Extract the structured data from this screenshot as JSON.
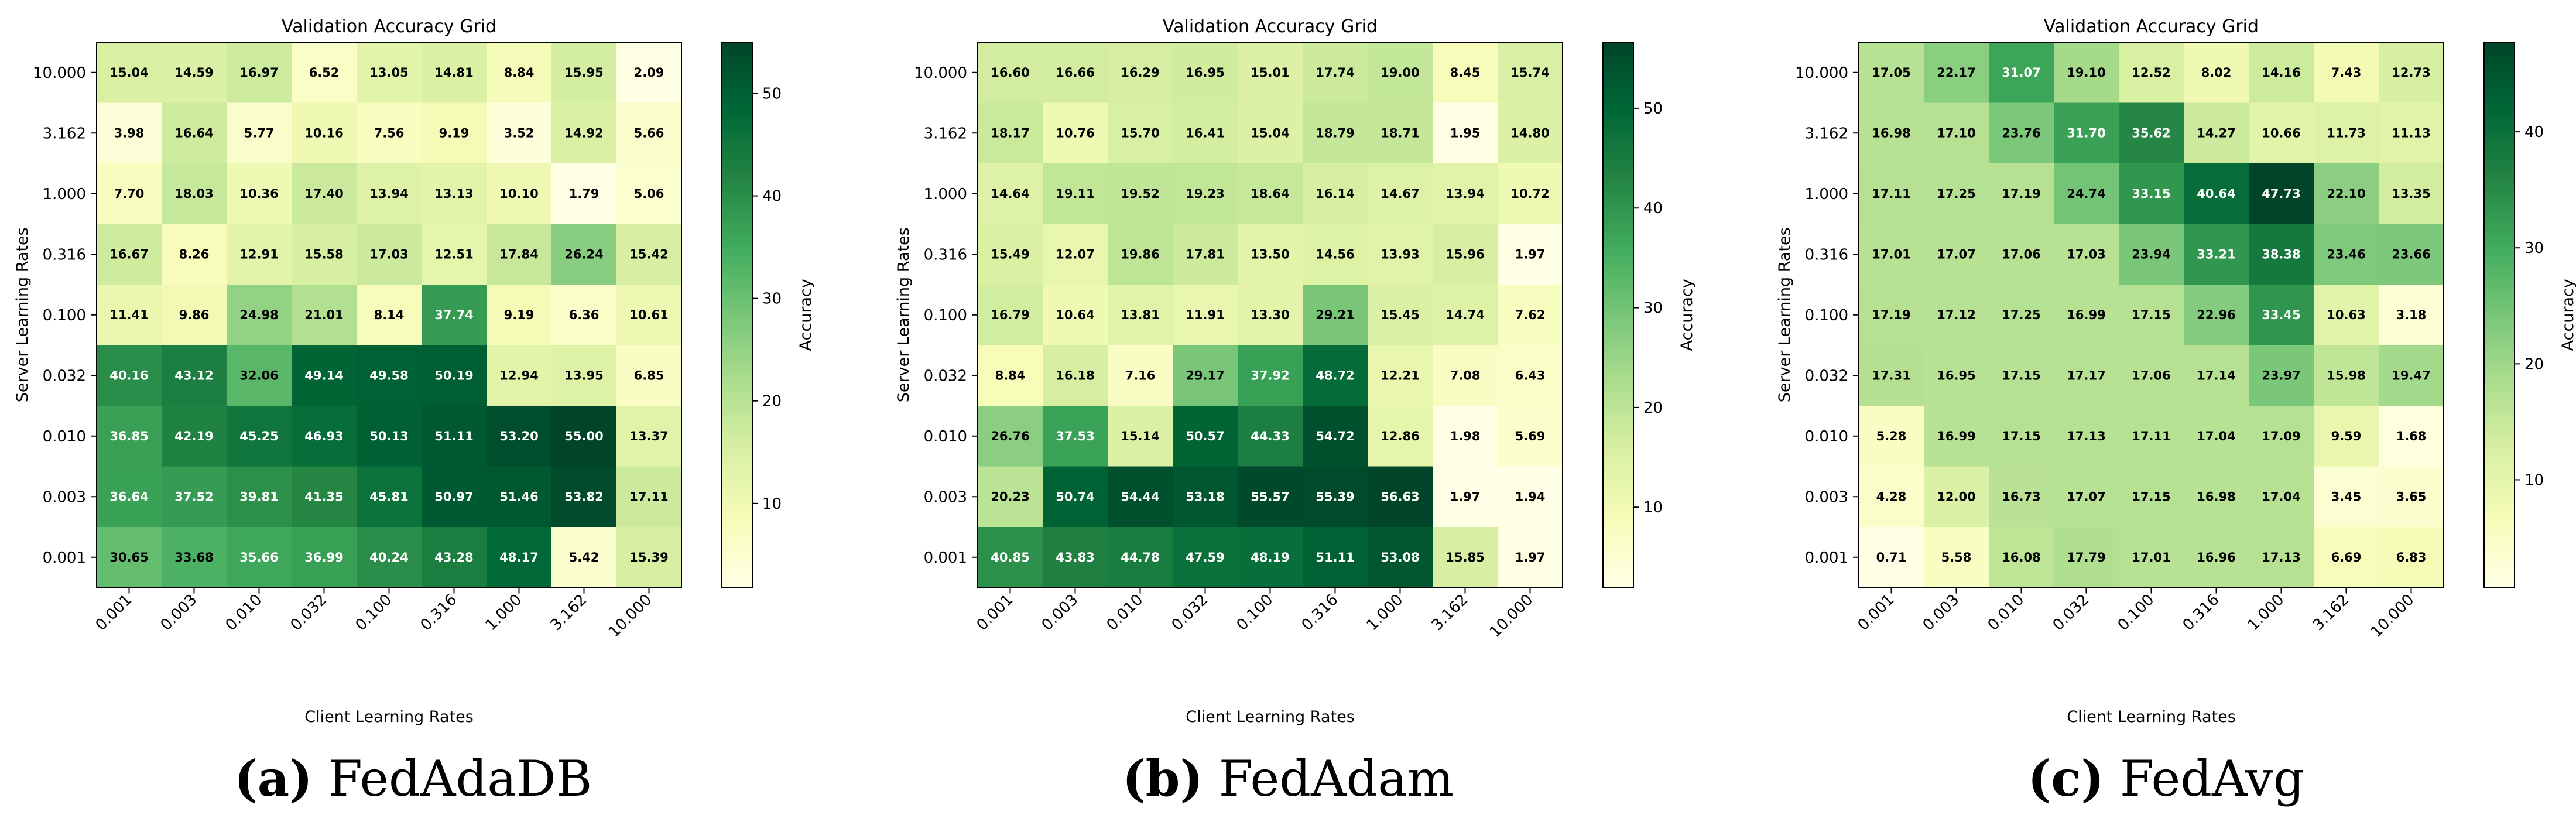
{
  "chart_data": [
    {
      "type": "heatmap",
      "title": "Validation Accuracy Grid",
      "xlabel": "Client Learning Rates",
      "ylabel": "Server Learning Rates",
      "colorbar_label": "Accuracy",
      "x_ticks": [
        "0.001",
        "0.003",
        "0.010",
        "0.032",
        "0.100",
        "0.316",
        "1.000",
        "3.162",
        "10.000"
      ],
      "y_ticks": [
        "10.000",
        "3.162",
        "1.000",
        "0.316",
        "0.100",
        "0.032",
        "0.010",
        "0.003",
        "0.001"
      ],
      "colorbar_ticks": [
        "10",
        "20",
        "30",
        "40",
        "50"
      ],
      "vmin": 1.79,
      "vmax": 55.0,
      "values": [
        [
          15.04,
          14.59,
          16.97,
          6.52,
          13.05,
          14.81,
          8.84,
          15.95,
          2.09
        ],
        [
          3.98,
          16.64,
          5.77,
          10.16,
          7.56,
          9.19,
          3.52,
          14.92,
          5.66
        ],
        [
          7.7,
          18.03,
          10.36,
          17.4,
          13.94,
          13.13,
          10.1,
          1.79,
          5.06
        ],
        [
          16.67,
          8.26,
          12.91,
          15.58,
          17.03,
          12.51,
          17.84,
          26.24,
          15.42
        ],
        [
          11.41,
          9.86,
          24.98,
          21.01,
          8.14,
          37.74,
          9.19,
          6.36,
          10.61
        ],
        [
          40.16,
          43.12,
          32.06,
          49.14,
          49.58,
          50.19,
          12.94,
          13.95,
          6.85
        ],
        [
          36.85,
          42.19,
          45.25,
          46.93,
          50.13,
          51.11,
          53.2,
          55.0,
          13.37
        ],
        [
          36.64,
          37.52,
          39.81,
          41.35,
          45.81,
          50.97,
          51.46,
          53.82,
          17.11
        ],
        [
          30.65,
          33.68,
          35.66,
          36.99,
          40.24,
          43.28,
          48.17,
          5.42,
          15.39
        ]
      ],
      "labels": [
        [
          "15.04",
          "14.59",
          "16.97",
          "6.52",
          "13.05",
          "14.81",
          "8.84",
          "15.95",
          "2.09"
        ],
        [
          "3.98",
          "16.64",
          "5.77",
          "10.16",
          "7.56",
          "9.19",
          "3.52",
          "14.92",
          "5.66"
        ],
        [
          "7.70",
          "18.03",
          "10.36",
          "17.40",
          "13.94",
          "13.13",
          "10.10",
          "1.79",
          "5.06"
        ],
        [
          "16.67",
          "8.26",
          "12.91",
          "15.58",
          "17.03",
          "12.51",
          "17.84",
          "26.24",
          "15.42"
        ],
        [
          "11.41",
          "9.86",
          "24.98",
          "21.01",
          "8.14",
          "37.74",
          "9.19",
          "6.36",
          "10.61"
        ],
        [
          "40.16",
          "43.12",
          "32.06",
          "49.14",
          "49.58",
          "50.19",
          "12.94",
          "13.95",
          "6.85"
        ],
        [
          "36.85",
          "42.19",
          "45.25",
          "46.93",
          "50.13",
          "51.11",
          "53.20",
          "55.00",
          "13.37"
        ],
        [
          "36.64",
          "37.52",
          "39.81",
          "41.35",
          "45.81",
          "50.97",
          "51.46",
          "53.82",
          "17.11"
        ],
        [
          "30.65",
          "33.68",
          "35.66",
          "36.99",
          "40.24",
          "43.28",
          "48.17",
          "5.42",
          "15.39"
        ]
      ]
    },
    {
      "type": "heatmap",
      "title": "Validation Accuracy Grid",
      "xlabel": "Client Learning Rates",
      "ylabel": "Server Learning Rates",
      "colorbar_label": "Accuracy",
      "x_ticks": [
        "0.001",
        "0.003",
        "0.010",
        "0.032",
        "0.100",
        "0.316",
        "1.000",
        "3.162",
        "10.000"
      ],
      "y_ticks": [
        "10.000",
        "3.162",
        "1.000",
        "0.316",
        "0.100",
        "0.032",
        "0.010",
        "0.003",
        "0.001"
      ],
      "colorbar_ticks": [
        "10",
        "20",
        "30",
        "40",
        "50"
      ],
      "vmin": 1.94,
      "vmax": 56.63,
      "values": [
        [
          16.6,
          16.66,
          16.29,
          16.95,
          15.01,
          17.74,
          19.0,
          8.45,
          15.74
        ],
        [
          18.17,
          10.76,
          15.7,
          16.41,
          15.04,
          18.79,
          18.71,
          1.95,
          14.8
        ],
        [
          14.64,
          19.11,
          19.52,
          19.23,
          18.64,
          16.14,
          14.67,
          13.94,
          10.72
        ],
        [
          15.49,
          12.07,
          19.86,
          17.81,
          13.5,
          14.56,
          13.93,
          15.96,
          1.97
        ],
        [
          16.79,
          10.64,
          13.81,
          11.91,
          13.3,
          29.21,
          15.45,
          14.74,
          7.62
        ],
        [
          8.84,
          16.18,
          7.16,
          29.17,
          37.92,
          48.72,
          12.21,
          7.08,
          6.43
        ],
        [
          26.76,
          37.53,
          15.14,
          50.57,
          44.33,
          54.72,
          12.86,
          1.98,
          5.69
        ],
        [
          20.23,
          50.74,
          54.44,
          53.18,
          55.57,
          55.39,
          56.63,
          1.97,
          1.94
        ],
        [
          40.85,
          43.83,
          44.78,
          47.59,
          48.19,
          51.11,
          53.08,
          15.85,
          1.97
        ]
      ],
      "labels": [
        [
          "16.60",
          "16.66",
          "16.29",
          "16.95",
          "15.01",
          "17.74",
          "19.00",
          "8.45",
          "15.74"
        ],
        [
          "18.17",
          "10.76",
          "15.70",
          "16.41",
          "15.04",
          "18.79",
          "18.71",
          "1.95",
          "14.80"
        ],
        [
          "14.64",
          "19.11",
          "19.52",
          "19.23",
          "18.64",
          "16.14",
          "14.67",
          "13.94",
          "10.72"
        ],
        [
          "15.49",
          "12.07",
          "19.86",
          "17.81",
          "13.50",
          "14.56",
          "13.93",
          "15.96",
          "1.97"
        ],
        [
          "16.79",
          "10.64",
          "13.81",
          "11.91",
          "13.30",
          "29.21",
          "15.45",
          "14.74",
          "7.62"
        ],
        [
          "8.84",
          "16.18",
          "7.16",
          "29.17",
          "37.92",
          "48.72",
          "12.21",
          "7.08",
          "6.43"
        ],
        [
          "26.76",
          "37.53",
          "15.14",
          "50.57",
          "44.33",
          "54.72",
          "12.86",
          "1.98",
          "5.69"
        ],
        [
          "20.23",
          "50.74",
          "54.44",
          "53.18",
          "55.57",
          "55.39",
          "56.63",
          "1.97",
          "1.94"
        ],
        [
          "40.85",
          "43.83",
          "44.78",
          "47.59",
          "48.19",
          "51.11",
          "53.08",
          "15.85",
          "1.97"
        ]
      ]
    },
    {
      "type": "heatmap",
      "title": "Validation Accuracy Grid",
      "xlabel": "Client Learning Rates",
      "ylabel": "Server Learning Rates",
      "colorbar_label": "Accuracy",
      "x_ticks": [
        "0.001",
        "0.003",
        "0.010",
        "0.032",
        "0.100",
        "0.316",
        "1.000",
        "3.162",
        "10.000"
      ],
      "y_ticks": [
        "10.000",
        "3.162",
        "1.000",
        "0.316",
        "0.100",
        "0.032",
        "0.010",
        "0.003",
        "0.001"
      ],
      "colorbar_ticks": [
        "10",
        "20",
        "30",
        "40"
      ],
      "vmin": 0.71,
      "vmax": 47.73,
      "values": [
        [
          17.05,
          22.17,
          31.07,
          19.1,
          12.52,
          8.02,
          14.16,
          7.43,
          12.73
        ],
        [
          16.98,
          17.1,
          23.76,
          31.7,
          35.62,
          14.27,
          10.66,
          11.73,
          11.13
        ],
        [
          17.11,
          17.25,
          17.19,
          24.74,
          33.15,
          40.64,
          47.73,
          22.1,
          13.35
        ],
        [
          17.01,
          17.07,
          17.06,
          17.03,
          23.94,
          33.21,
          38.38,
          23.46,
          23.66
        ],
        [
          17.19,
          17.12,
          17.25,
          16.99,
          17.15,
          22.96,
          33.45,
          10.63,
          3.18
        ],
        [
          17.31,
          16.95,
          17.15,
          17.17,
          17.06,
          17.14,
          23.97,
          15.98,
          19.47
        ],
        [
          5.28,
          16.99,
          17.15,
          17.13,
          17.11,
          17.04,
          17.09,
          9.59,
          1.68
        ],
        [
          4.28,
          12.0,
          16.73,
          17.07,
          17.15,
          16.98,
          17.04,
          3.45,
          3.65
        ],
        [
          0.71,
          5.58,
          16.08,
          17.79,
          17.01,
          16.96,
          17.13,
          6.69,
          6.83
        ]
      ],
      "labels": [
        [
          "17.05",
          "22.17",
          "31.07",
          "19.10",
          "12.52",
          "8.02",
          "14.16",
          "7.43",
          "12.73"
        ],
        [
          "16.98",
          "17.10",
          "23.76",
          "31.70",
          "35.62",
          "14.27",
          "10.66",
          "11.73",
          "11.13"
        ],
        [
          "17.11",
          "17.25",
          "17.19",
          "24.74",
          "33.15",
          "40.64",
          "47.73",
          "22.10",
          "13.35"
        ],
        [
          "17.01",
          "17.07",
          "17.06",
          "17.03",
          "23.94",
          "33.21",
          "38.38",
          "23.46",
          "23.66"
        ],
        [
          "17.19",
          "17.12",
          "17.25",
          "16.99",
          "17.15",
          "22.96",
          "33.45",
          "10.63",
          "3.18"
        ],
        [
          "17.31",
          "16.95",
          "17.15",
          "17.17",
          "17.06",
          "17.14",
          "23.97",
          "15.98",
          "19.47"
        ],
        [
          "5.28",
          "16.99",
          "17.15",
          "17.13",
          "17.11",
          "17.04",
          "17.09",
          "9.59",
          "1.68"
        ],
        [
          "4.28",
          "12.00",
          "16.73",
          "17.07",
          "17.15",
          "16.98",
          "17.04",
          "3.45",
          "3.65"
        ],
        [
          "0.71",
          "5.58",
          "16.08",
          "17.79",
          "17.01",
          "16.96",
          "17.13",
          "6.69",
          "6.83"
        ]
      ]
    }
  ],
  "captions": [
    {
      "letter": "(a)",
      "name": "FedAdaDB"
    },
    {
      "letter": "(b)",
      "name": "FedAdam"
    },
    {
      "letter": "(c)",
      "name": "FedAvg"
    }
  ],
  "colors": {
    "cmap": [
      "#ffffe5",
      "#f7fcb9",
      "#d9f0a3",
      "#addd8e",
      "#78c679",
      "#41ab5d",
      "#238443",
      "#006837",
      "#004529"
    ]
  }
}
